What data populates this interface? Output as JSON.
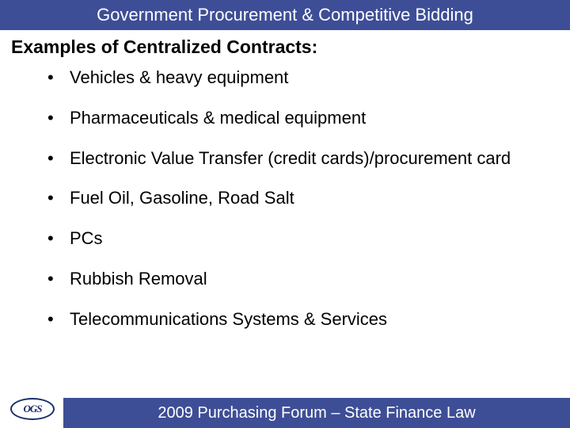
{
  "colors": {
    "header_bg": "#3e4e96",
    "header_text": "#ffffff",
    "body_text": "#000000",
    "background": "#ffffff",
    "logo_border": "#1a2e6e",
    "logo_text": "#1a2e6e"
  },
  "header": {
    "title": "Government Procurement & Competitive Bidding"
  },
  "subtitle": "Examples of Centralized Contracts:",
  "bullets": [
    "Vehicles & heavy equipment",
    "Pharmaceuticals & medical equipment",
    "Electronic Value Transfer (credit cards)/procurement card",
    "Fuel Oil, Gasoline, Road Salt",
    "PCs",
    "Rubbish Removal",
    "Telecommunications Systems & Services"
  ],
  "footer": {
    "text": "2009 Purchasing Forum – State Finance Law"
  },
  "logo": {
    "text": "OGS",
    "subtext": ""
  }
}
